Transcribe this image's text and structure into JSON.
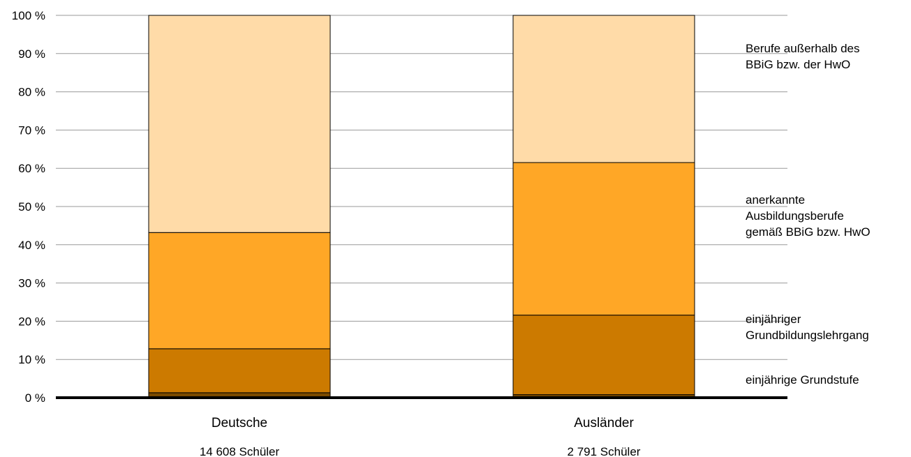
{
  "chart_data": {
    "type": "bar",
    "stacked": true,
    "categories": [
      "Deutsche",
      "Ausländer"
    ],
    "category_sublabels": [
      "14 608 Schüler",
      "2 791 Schüler"
    ],
    "ylim": [
      0,
      100
    ],
    "y_ticks": [
      0,
      10,
      20,
      30,
      40,
      50,
      60,
      70,
      80,
      90,
      100
    ],
    "y_tick_labels": [
      "0 %",
      "10 %",
      "20 %",
      "30 %",
      "40 %",
      "50 %",
      "60 %",
      "70 %",
      "80 %",
      "90 %",
      "100 %"
    ],
    "grid": true,
    "legend_position": "right",
    "series": [
      {
        "name": "einjährige Grundstufe",
        "values": [
          1.3,
          0.8
        ],
        "color": "#7a4a00",
        "legend_lines": [
          "einjährige Grundstufe"
        ]
      },
      {
        "name": "einjähriger Grundbildungslehrgang",
        "values": [
          11.5,
          20.8
        ],
        "color": "#cc7a00",
        "legend_lines": [
          "einjähriger",
          "Grundbildungslehrgang"
        ]
      },
      {
        "name": "anerkannte Ausbildungsberufe gemäß BBiG bzw. HwO",
        "values": [
          30.4,
          39.9
        ],
        "color": "#ffa726",
        "legend_lines": [
          "anerkannte",
          "Ausbildungsberufe",
          "gemäß BBiG bzw. HwO"
        ]
      },
      {
        "name": "Berufe außerhalb des BBiG bzw. der HwO",
        "values": [
          56.8,
          38.5
        ],
        "color": "#ffdba8",
        "legend_lines": [
          "Berufe außerhalb des",
          "BBiG bzw. der HwO"
        ]
      }
    ]
  }
}
